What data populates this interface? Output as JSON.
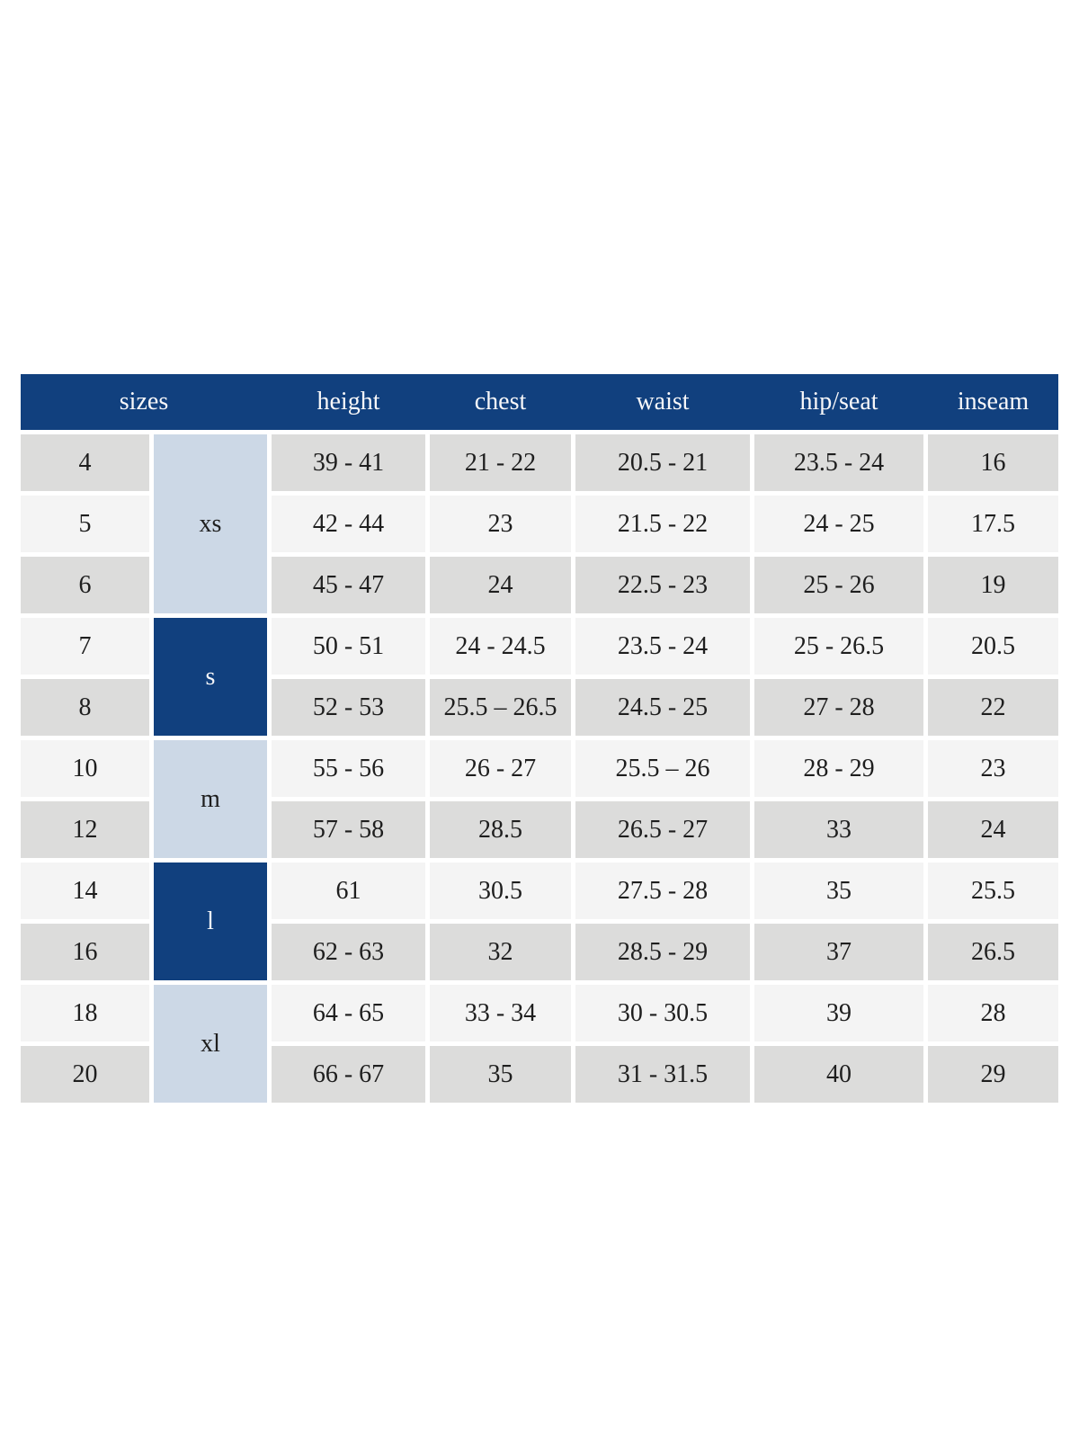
{
  "colors": {
    "header_bg": "#11407e",
    "header_text": "#f7f7f9",
    "group_light_bg": "#ccd8e6",
    "group_dark_bg": "#11407e",
    "group_dark_text": "#f7f7f9",
    "row_shade_a": "#dcdcdb",
    "row_shade_b": "#f4f4f4",
    "cell_text": "#1e1e1e",
    "page_bg": "#ffffff"
  },
  "chart_data": {
    "type": "table",
    "columns": [
      "sizes",
      "height",
      "chest",
      "waist",
      "hip/seat",
      "inseam"
    ],
    "groups": [
      {
        "label": "xs",
        "variant": "light",
        "rows": [
          {
            "size": "4",
            "height": "39 - 41",
            "chest": "21 - 22",
            "waist": "20.5 - 21",
            "hip_seat": "23.5 - 24",
            "inseam": "16"
          },
          {
            "size": "5",
            "height": "42 - 44",
            "chest": "23",
            "waist": "21.5 - 22",
            "hip_seat": "24 - 25",
            "inseam": "17.5"
          },
          {
            "size": "6",
            "height": "45 - 47",
            "chest": "24",
            "waist": "22.5 - 23",
            "hip_seat": "25 - 26",
            "inseam": "19"
          }
        ]
      },
      {
        "label": "s",
        "variant": "dark",
        "rows": [
          {
            "size": "7",
            "height": "50 - 51",
            "chest": "24 - 24.5",
            "waist": "23.5 - 24",
            "hip_seat": "25 - 26.5",
            "inseam": "20.5"
          },
          {
            "size": "8",
            "height": "52 - 53",
            "chest": "25.5 – 26.5",
            "waist": "24.5 - 25",
            "hip_seat": "27 - 28",
            "inseam": "22"
          }
        ]
      },
      {
        "label": "m",
        "variant": "light",
        "rows": [
          {
            "size": "10",
            "height": "55 - 56",
            "chest": "26 - 27",
            "waist": "25.5 – 26",
            "hip_seat": "28 - 29",
            "inseam": "23"
          },
          {
            "size": "12",
            "height": "57 - 58",
            "chest": "28.5",
            "waist": "26.5 - 27",
            "hip_seat": "33",
            "inseam": "24"
          }
        ]
      },
      {
        "label": "l",
        "variant": "dark",
        "rows": [
          {
            "size": "14",
            "height": "61",
            "chest": "30.5",
            "waist": "27.5 - 28",
            "hip_seat": "35",
            "inseam": "25.5"
          },
          {
            "size": "16",
            "height": "62 - 63",
            "chest": "32",
            "waist": "28.5 - 29",
            "hip_seat": "37",
            "inseam": "26.5"
          }
        ]
      },
      {
        "label": "xl",
        "variant": "light",
        "rows": [
          {
            "size": "18",
            "height": "64 - 65",
            "chest": "33 - 34",
            "waist": "30 - 30.5",
            "hip_seat": "39",
            "inseam": "28"
          },
          {
            "size": "20",
            "height": "66 - 67",
            "chest": "35",
            "waist": "31 - 31.5",
            "hip_seat": "40",
            "inseam": "29"
          }
        ]
      }
    ]
  }
}
